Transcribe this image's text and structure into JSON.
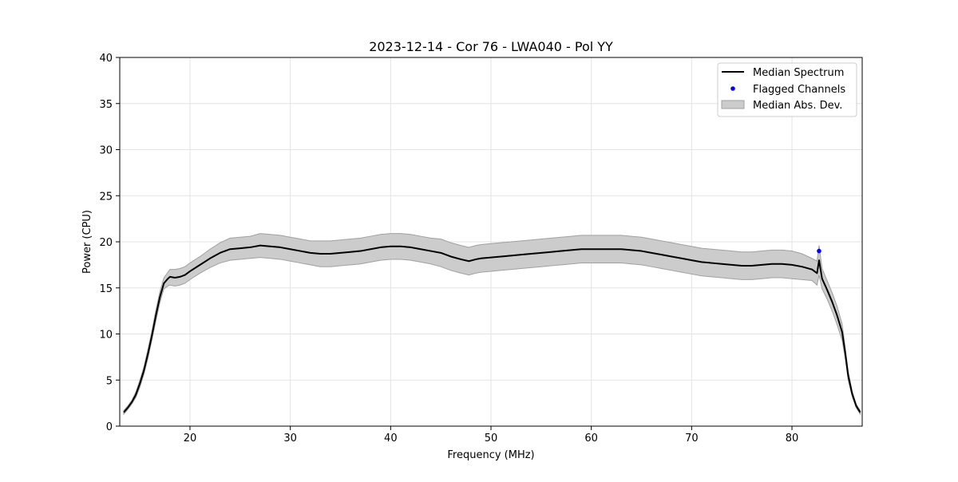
{
  "chart_data": {
    "type": "line",
    "title": "2023-12-14 - Cor 76 - LWA040 - Pol YY",
    "xlabel": "Frequency (MHz)",
    "ylabel": "Power (CPU)",
    "xlim": [
      13,
      87
    ],
    "ylim": [
      0,
      40
    ],
    "xticks": [
      20,
      30,
      40,
      50,
      60,
      70,
      80
    ],
    "yticks": [
      0,
      5,
      10,
      15,
      20,
      25,
      30,
      35,
      40
    ],
    "grid": true,
    "legend_position": "top-right",
    "legend": [
      "Median Spectrum",
      "Flagged Channels",
      "Median Abs. Dev."
    ],
    "series": [
      {
        "name": "Median Spectrum",
        "kind": "line",
        "color": "#000000",
        "x": [
          13.4,
          13.8,
          14.2,
          14.6,
          15.0,
          15.4,
          15.8,
          16.2,
          16.6,
          17.0,
          17.4,
          17.8,
          18.0,
          18.5,
          19.0,
          19.5,
          20.0,
          21.0,
          22.0,
          23.0,
          24.0,
          25.0,
          26.0,
          27.0,
          28.0,
          29.0,
          30.0,
          31.0,
          32.0,
          33.0,
          34.0,
          35.0,
          36.0,
          37.0,
          38.0,
          39.0,
          40.0,
          41.0,
          42.0,
          43.0,
          44.0,
          45.0,
          46.0,
          47.0,
          47.8,
          48.5,
          49.0,
          50.0,
          51.0,
          52.0,
          53.0,
          54.0,
          55.0,
          56.0,
          57.0,
          58.0,
          59.0,
          60.0,
          61.0,
          62.0,
          63.0,
          64.0,
          65.0,
          66.0,
          67.0,
          68.0,
          69.0,
          70.0,
          71.0,
          72.0,
          73.0,
          74.0,
          75.0,
          76.0,
          77.0,
          78.0,
          79.0,
          80.0,
          81.0,
          82.0,
          82.5,
          82.7,
          83.0,
          83.5,
          84.0,
          84.5,
          85.0,
          85.3,
          85.6,
          86.0,
          86.4,
          86.8
        ],
        "y": [
          1.5,
          2.0,
          2.6,
          3.4,
          4.6,
          6.0,
          7.8,
          9.8,
          12.0,
          14.0,
          15.5,
          16.0,
          16.2,
          16.1,
          16.2,
          16.4,
          16.8,
          17.5,
          18.2,
          18.8,
          19.2,
          19.3,
          19.4,
          19.6,
          19.5,
          19.4,
          19.2,
          19.0,
          18.8,
          18.7,
          18.7,
          18.8,
          18.9,
          19.0,
          19.2,
          19.4,
          19.5,
          19.5,
          19.4,
          19.2,
          19.0,
          18.8,
          18.4,
          18.1,
          17.9,
          18.1,
          18.2,
          18.3,
          18.4,
          18.5,
          18.6,
          18.7,
          18.8,
          18.9,
          19.0,
          19.1,
          19.2,
          19.2,
          19.2,
          19.2,
          19.2,
          19.1,
          19.0,
          18.8,
          18.6,
          18.4,
          18.2,
          18.0,
          17.8,
          17.7,
          17.6,
          17.5,
          17.4,
          17.4,
          17.5,
          17.6,
          17.6,
          17.5,
          17.3,
          17.0,
          16.6,
          18.0,
          16.0,
          14.8,
          13.5,
          12.0,
          10.2,
          8.0,
          5.5,
          3.5,
          2.2,
          1.5
        ]
      },
      {
        "name": "Median Abs. Dev.",
        "kind": "band",
        "color": "#cccccc",
        "edge_color": "#a0a0a0",
        "x": [
          13.4,
          13.8,
          14.2,
          14.6,
          15.0,
          15.4,
          15.8,
          16.2,
          16.6,
          17.0,
          17.4,
          17.8,
          18.0,
          18.5,
          19.0,
          19.5,
          20.0,
          21.0,
          22.0,
          23.0,
          24.0,
          25.0,
          26.0,
          27.0,
          28.0,
          29.0,
          30.0,
          31.0,
          32.0,
          33.0,
          34.0,
          35.0,
          36.0,
          37.0,
          38.0,
          39.0,
          40.0,
          41.0,
          42.0,
          43.0,
          44.0,
          45.0,
          46.0,
          47.0,
          47.8,
          48.5,
          49.0,
          50.0,
          51.0,
          52.0,
          53.0,
          54.0,
          55.0,
          56.0,
          57.0,
          58.0,
          59.0,
          60.0,
          61.0,
          62.0,
          63.0,
          64.0,
          65.0,
          66.0,
          67.0,
          68.0,
          69.0,
          70.0,
          71.0,
          72.0,
          73.0,
          74.0,
          75.0,
          76.0,
          77.0,
          78.0,
          79.0,
          80.0,
          81.0,
          82.0,
          82.5,
          82.7,
          83.0,
          83.5,
          84.0,
          84.5,
          85.0,
          85.3,
          85.6,
          86.0,
          86.4,
          86.8
        ],
        "lower": [
          1.3,
          1.8,
          2.4,
          3.1,
          4.2,
          5.6,
          7.3,
          9.3,
          11.4,
          13.4,
          14.9,
          15.2,
          15.3,
          15.2,
          15.3,
          15.5,
          15.9,
          16.6,
          17.2,
          17.7,
          18.0,
          18.1,
          18.2,
          18.3,
          18.2,
          18.1,
          17.9,
          17.7,
          17.5,
          17.3,
          17.3,
          17.4,
          17.5,
          17.6,
          17.8,
          18.0,
          18.1,
          18.1,
          18.0,
          17.8,
          17.6,
          17.3,
          16.9,
          16.6,
          16.4,
          16.6,
          16.7,
          16.8,
          16.9,
          17.0,
          17.1,
          17.2,
          17.3,
          17.4,
          17.5,
          17.6,
          17.7,
          17.7,
          17.7,
          17.7,
          17.7,
          17.6,
          17.5,
          17.3,
          17.1,
          16.9,
          16.7,
          16.5,
          16.3,
          16.2,
          16.1,
          16.0,
          15.9,
          15.9,
          16.0,
          16.1,
          16.1,
          16.0,
          15.9,
          15.8,
          15.3,
          16.4,
          14.9,
          13.8,
          12.5,
          11.0,
          9.3,
          7.4,
          5.0,
          3.2,
          2.0,
          1.3
        ],
        "upper": [
          1.7,
          2.2,
          2.8,
          3.7,
          5.0,
          6.4,
          8.3,
          10.3,
          12.6,
          14.6,
          16.1,
          16.7,
          17.0,
          17.0,
          17.1,
          17.3,
          17.7,
          18.4,
          19.2,
          19.9,
          20.4,
          20.5,
          20.6,
          20.9,
          20.8,
          20.7,
          20.5,
          20.3,
          20.1,
          20.1,
          20.1,
          20.2,
          20.3,
          20.4,
          20.6,
          20.8,
          20.9,
          20.9,
          20.8,
          20.6,
          20.4,
          20.3,
          19.9,
          19.6,
          19.4,
          19.6,
          19.7,
          19.8,
          19.9,
          20.0,
          20.1,
          20.2,
          20.3,
          20.4,
          20.5,
          20.6,
          20.7,
          20.7,
          20.7,
          20.7,
          20.7,
          20.6,
          20.5,
          20.3,
          20.1,
          19.9,
          19.7,
          19.5,
          19.3,
          19.2,
          19.1,
          19.0,
          18.9,
          18.9,
          19.0,
          19.1,
          19.1,
          19.0,
          18.7,
          18.2,
          17.9,
          19.6,
          17.1,
          15.8,
          14.5,
          13.0,
          11.1,
          8.6,
          6.0,
          3.8,
          2.4,
          1.7
        ]
      },
      {
        "name": "Flagged Channels",
        "kind": "scatter",
        "color": "#0000ff",
        "x": [
          82.7
        ],
        "y": [
          19.0
        ]
      }
    ]
  }
}
